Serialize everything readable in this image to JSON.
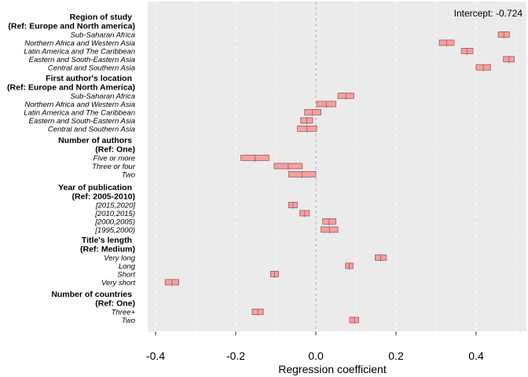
{
  "chart_data": {
    "type": "forest",
    "xlabel": "Regression coefficient",
    "xlim": [
      -0.42,
      0.5
    ],
    "xticks": [
      -0.4,
      -0.2,
      0.0,
      0.2,
      0.4
    ],
    "xtick_labels": [
      "-0.4",
      "-0.2",
      "0.0",
      "0.2",
      "0.4"
    ],
    "intercept_label": "Intercept: -0.724",
    "reference_line": 0,
    "colors": {
      "panel": "#ebebeb",
      "grid": "#ffffff",
      "box_fill": "#f4a0a0",
      "box_stroke": "#a05a5a",
      "ref_line": "#b3b3b3"
    },
    "groups": [
      {
        "title": "Region of study",
        "ref": "(Ref: Europe and North america)",
        "items": [
          {
            "label": "Sub-Saharan Africa",
            "lo": 0.455,
            "hi": 0.483,
            "est": 0.469
          },
          {
            "label": "Northern Africa and Western Asia",
            "lo": 0.308,
            "hi": 0.345,
            "est": 0.326
          },
          {
            "label": "Latin America and The Caribbean",
            "lo": 0.363,
            "hi": 0.392,
            "est": 0.377
          },
          {
            "label": "Eastern and South-Eastern Asia",
            "lo": 0.468,
            "hi": 0.495,
            "est": 0.482
          },
          {
            "label": "Central and Southern Asia",
            "lo": 0.4,
            "hi": 0.436,
            "est": 0.418
          }
        ]
      },
      {
        "title": "First author's location",
        "ref": "(Ref: Europe and North America)",
        "items": [
          {
            "label": "Sub-Saharan Africa",
            "lo": 0.055,
            "hi": 0.095,
            "est": 0.075
          },
          {
            "label": "Northern Africa and Western Asia",
            "lo": 0.002,
            "hi": 0.05,
            "est": 0.026
          },
          {
            "label": "Latin America and The Caribbean",
            "lo": -0.028,
            "hi": 0.013,
            "est": -0.008
          },
          {
            "label": "Eastern and South-Eastern Asia",
            "lo": -0.038,
            "hi": -0.008,
            "est": -0.023
          },
          {
            "label": "Central and Southern Asia",
            "lo": -0.046,
            "hi": 0.002,
            "est": -0.022
          }
        ]
      },
      {
        "title": "Number of authors",
        "ref": "(Ref: One)",
        "items": [
          {
            "label": "Five or more",
            "lo": -0.187,
            "hi": -0.117,
            "est": -0.152
          },
          {
            "label": "Three or four",
            "lo": -0.104,
            "hi": -0.034,
            "est": -0.069
          },
          {
            "label": "Two",
            "lo": -0.068,
            "hi": 0.0,
            "est": -0.034
          }
        ]
      },
      {
        "title": "Year of publication",
        "ref": "(Ref: 2005-2010)",
        "items": [
          {
            "label": "[2015,2020]",
            "lo": -0.068,
            "hi": -0.046,
            "est": -0.057
          },
          {
            "label": "[2010,2015)",
            "lo": -0.04,
            "hi": -0.016,
            "est": -0.028
          },
          {
            "label": "[2000,2005)",
            "lo": 0.017,
            "hi": 0.05,
            "est": 0.033
          },
          {
            "label": "[1995,2000)",
            "lo": 0.013,
            "hi": 0.055,
            "est": 0.034
          }
        ]
      },
      {
        "title": "Title's length",
        "ref": "(Ref: Medium)",
        "items": [
          {
            "label": "Very long",
            "lo": 0.148,
            "hi": 0.176,
            "est": 0.162
          },
          {
            "label": "Long",
            "lo": 0.074,
            "hi": 0.093,
            "est": 0.083
          },
          {
            "label": "Short",
            "lo": -0.113,
            "hi": -0.093,
            "est": -0.103
          },
          {
            "label": "Very short",
            "lo": -0.376,
            "hi": -0.342,
            "est": -0.359
          }
        ]
      },
      {
        "title": "Number of countries",
        "ref": "(Ref: One)",
        "items": [
          {
            "label": "Three+",
            "lo": -0.159,
            "hi": -0.131,
            "est": -0.145
          },
          {
            "label": "Two",
            "lo": 0.084,
            "hi": 0.107,
            "est": 0.096
          }
        ]
      }
    ]
  }
}
